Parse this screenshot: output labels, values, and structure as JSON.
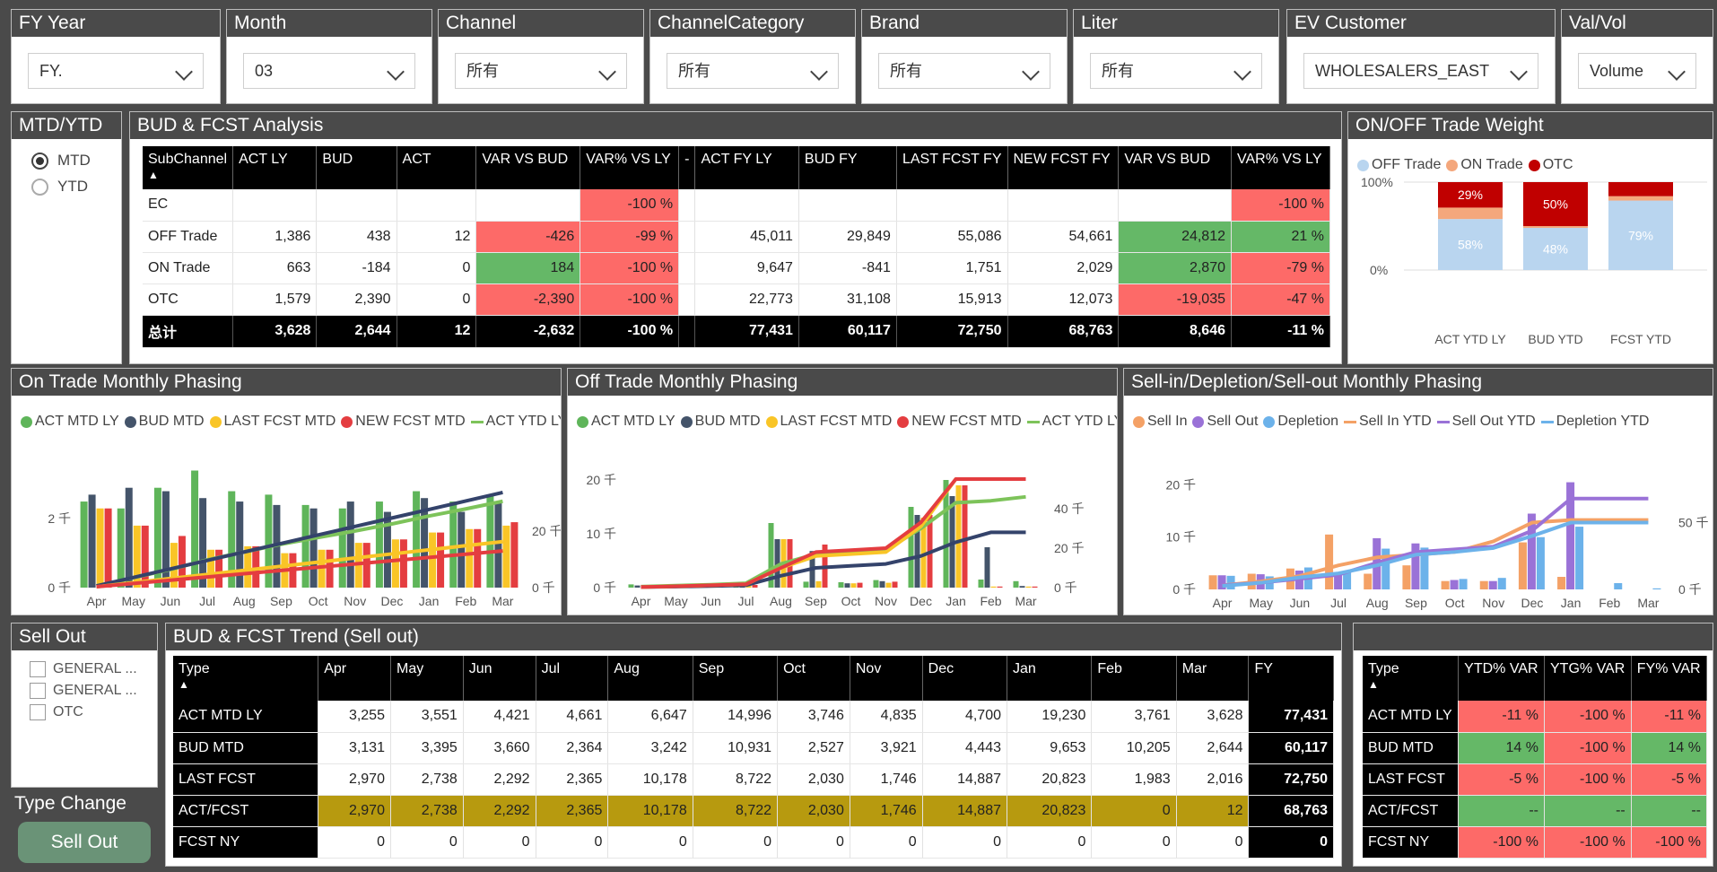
{
  "filters": [
    {
      "title": "FY Year",
      "value": "FY."
    },
    {
      "title": "Month",
      "value": "03"
    },
    {
      "title": "Channel",
      "value": "所有"
    },
    {
      "title": "ChannelCategory",
      "value": "所有"
    },
    {
      "title": "Brand",
      "value": "所有"
    },
    {
      "title": "Liter",
      "value": "所有"
    },
    {
      "title": "EV Customer",
      "value": "WHOLESALERS_EAST"
    },
    {
      "title": "Val/Vol",
      "value": "Volume"
    }
  ],
  "mtdytd": {
    "title": "MTD/YTD",
    "options": [
      "MTD",
      "YTD"
    ],
    "selected": "MTD"
  },
  "bud": {
    "title": "BUD & FCST Analysis",
    "headers": [
      "SubChannel",
      "ACT LY",
      "BUD",
      "ACT",
      "VAR VS BUD",
      "VAR% VS LY",
      "-",
      "ACT FY LY",
      "BUD FY",
      "LAST FCST FY",
      "NEW FCST FY",
      "VAR VS BUD",
      "VAR% VS LY"
    ],
    "rows": [
      [
        "EC",
        "",
        "",
        "",
        "",
        "-100 %",
        "",
        "",
        "",
        "",
        "",
        "",
        "-100 %"
      ],
      [
        "OFF Trade",
        "1,386",
        "438",
        "12",
        "-426",
        "-99 %",
        "",
        "45,011",
        "29,849",
        "55,086",
        "54,661",
        "24,812",
        "21 %"
      ],
      [
        "ON Trade",
        "663",
        "-184",
        "0",
        "184",
        "-100 %",
        "",
        "9,647",
        "-841",
        "1,751",
        "2,029",
        "2,870",
        "-79 %"
      ],
      [
        "OTC",
        "1,579",
        "2,390",
        "0",
        "-2,390",
        "-100 %",
        "",
        "22,773",
        "31,108",
        "15,913",
        "12,073",
        "-19,035",
        "-47 %"
      ]
    ],
    "total": [
      "总计",
      "3,628",
      "2,644",
      "12",
      "-2,632",
      "-100 %",
      "",
      "77,431",
      "60,117",
      "72,750",
      "68,763",
      "8,646",
      "-11 %"
    ]
  },
  "weight": {
    "title": "ON/OFF Trade Weight",
    "legend": [
      "OFF Trade",
      "ON Trade",
      "OTC"
    ],
    "y_ticks": [
      "100%",
      "0%"
    ],
    "categories": [
      "ACT YTD LY",
      "BUD YTD",
      "FCST YTD"
    ],
    "labels": [
      [
        "58%",
        "",
        "29%"
      ],
      [
        "48%",
        "",
        "50%"
      ],
      [
        "79%",
        "",
        ""
      ]
    ]
  },
  "chart_data": [
    {
      "type": "bar",
      "title": "On Trade Monthly Phasing",
      "categories": [
        "Apr",
        "May",
        "Jun",
        "Jul",
        "Aug",
        "Sep",
        "Oct",
        "Nov",
        "Dec",
        "Jan",
        "Feb",
        "Mar"
      ],
      "y_ticks_left": [
        "0 千",
        "2 千"
      ],
      "y_ticks_right": [
        "0 千",
        "20 千"
      ],
      "series": [
        {
          "name": "ACT MTD LY",
          "values": [
            2.5,
            2.3,
            2.9,
            3.4,
            2.8,
            2.7,
            2.4,
            2.3,
            2.5,
            2.8,
            2.5,
            2.7
          ]
        },
        {
          "name": "BUD MTD",
          "values": [
            2.7,
            2.9,
            2.8,
            2.6,
            2.5,
            2.4,
            2.3,
            2.5,
            2.2,
            2.6,
            2.2,
            2.5
          ]
        },
        {
          "name": "LAST FCST MTD",
          "values": [
            2.3,
            1.8,
            1.3,
            1.1,
            1.2,
            1.0,
            1.1,
            1.3,
            1.4,
            1.6,
            1.7,
            1.8
          ]
        },
        {
          "name": "NEW FCST MTD",
          "values": [
            2.3,
            1.8,
            1.5,
            1.1,
            1.2,
            1.0,
            1.1,
            1.3,
            1.4,
            1.6,
            1.7,
            1.9
          ]
        },
        {
          "name": "ACT YTD LY",
          "values": [
            0.5,
            3.5,
            6.4,
            9.8,
            12.6,
            15.3,
            17.7,
            20.0,
            22.5,
            25.3,
            27.8,
            30.5
          ]
        }
      ]
    },
    {
      "type": "bar",
      "title": "Off Trade Monthly Phasing",
      "categories": [
        "Apr",
        "May",
        "Jun",
        "Jul",
        "Aug",
        "Sep",
        "Oct",
        "Nov",
        "Dec",
        "Jan",
        "Feb",
        "Mar"
      ],
      "y_ticks_left": [
        "0 千",
        "10 千",
        "20 千"
      ],
      "y_ticks_right": [
        "0 千",
        "20 千",
        "40 千"
      ],
      "series": [
        {
          "name": "ACT MTD LY",
          "values": [
            0.6,
            0.3,
            0.5,
            0.6,
            12,
            1.1,
            1.0,
            1.4,
            15,
            20,
            1.5,
            1.2
          ]
        },
        {
          "name": "BUD MTD",
          "values": [
            0.4,
            0.2,
            0.3,
            0.4,
            9,
            6.8,
            0.8,
            1.2,
            13.5,
            17,
            7.5,
            0.3
          ]
        },
        {
          "name": "LAST FCST MTD",
          "values": [
            0.3,
            0.3,
            0.4,
            0.5,
            9,
            1.2,
            0.8,
            0.9,
            13,
            19,
            0.2,
            0.2
          ]
        },
        {
          "name": "NEW FCST MTD",
          "values": [
            0.3,
            0.3,
            0.4,
            0.5,
            9,
            8,
            0.9,
            1.1,
            13.5,
            19,
            0.2,
            0.2
          ]
        },
        {
          "name": "ACT YTD LY",
          "values": [
            0.6,
            1,
            1.6,
            2.3,
            14,
            16,
            17,
            18,
            33,
            45,
            46,
            47
          ]
        }
      ]
    },
    {
      "type": "bar",
      "title": "Sell-in/Depletion/Sell-out Monthly Phasing",
      "categories": [
        "Apr",
        "May",
        "Jun",
        "Jul",
        "Aug",
        "Sep",
        "Oct",
        "Nov",
        "Dec",
        "Jan",
        "Feb",
        "Mar"
      ],
      "y_ticks_left": [
        "0 千",
        "10 千",
        "20 千"
      ],
      "y_ticks_right": [
        "0 千",
        "50 千"
      ],
      "series": [
        {
          "name": "Sell In",
          "values": [
            2.7,
            3.0,
            4.0,
            10.5,
            3.0,
            4.6,
            1.6,
            1.6,
            9.0,
            2.4,
            0,
            0
          ]
        },
        {
          "name": "Sell Out",
          "values": [
            2.7,
            2.9,
            3.6,
            2.8,
            9.8,
            8.8,
            1.8,
            1.6,
            14.5,
            20.5,
            0,
            0
          ]
        },
        {
          "name": "Depletion",
          "values": [
            2.6,
            2.5,
            4.2,
            3.2,
            7.8,
            8.0,
            2.0,
            2.2,
            10.0,
            12.0,
            1.2,
            0.2
          ]
        },
        {
          "name": "Sell In YTD",
          "values": [
            2.7,
            5.7,
            9.7,
            20.2,
            23.2,
            27.8,
            29.4,
            31.0,
            40.0,
            42.4,
            42.4,
            42.4
          ]
        },
        {
          "name": "Sell Out YTD",
          "values": [
            2.7,
            5.6,
            9.2,
            12.0,
            21.8,
            30.6,
            32.4,
            34.0,
            48.5,
            69.0,
            69.0,
            69.0
          ]
        },
        {
          "name": "Depletion YTD",
          "values": [
            2.6,
            5.1,
            9.3,
            12.5,
            20.3,
            28.3,
            30.3,
            32.5,
            42.5,
            54.5,
            55.7,
            55.9
          ]
        }
      ]
    }
  ],
  "sellout": {
    "title": "Sell Out",
    "items": [
      "GENERAL ...",
      "GENERAL ...",
      "OTC"
    ]
  },
  "typechange": {
    "title": "Type Change",
    "button": "Sell Out"
  },
  "trend": {
    "title": "BUD & FCST Trend (Sell out)",
    "headers": [
      "Type",
      "Apr",
      "May",
      "Jun",
      "Jul",
      "Aug",
      "Sep",
      "Oct",
      "Nov",
      "Dec",
      "Jan",
      "Feb",
      "Mar",
      "FY"
    ],
    "rows": [
      [
        "ACT MTD LY",
        "3,255",
        "3,551",
        "4,421",
        "4,661",
        "6,647",
        "14,996",
        "3,746",
        "4,835",
        "4,700",
        "19,230",
        "3,761",
        "3,628",
        "77,431"
      ],
      [
        "BUD MTD",
        "3,131",
        "3,395",
        "3,660",
        "2,364",
        "3,242",
        "10,931",
        "2,527",
        "3,921",
        "4,443",
        "9,653",
        "10,205",
        "2,644",
        "60,117"
      ],
      [
        "LAST FCST",
        "2,970",
        "2,738",
        "2,292",
        "2,365",
        "10,178",
        "8,722",
        "2,030",
        "1,746",
        "14,887",
        "20,823",
        "1,983",
        "2,016",
        "72,750"
      ],
      [
        "ACT/FCST",
        "2,970",
        "2,738",
        "2,292",
        "2,365",
        "10,178",
        "8,722",
        "2,030",
        "1,746",
        "14,887",
        "20,823",
        "0",
        "12",
        "68,763"
      ],
      [
        "FCST NY",
        "0",
        "0",
        "0",
        "0",
        "0",
        "0",
        "0",
        "0",
        "0",
        "0",
        "0",
        "0",
        "0"
      ]
    ]
  },
  "var": {
    "headers": [
      "Type",
      "YTD% VAR",
      "YTG% VAR",
      "FY% VAR"
    ],
    "rows": [
      [
        "ACT MTD LY",
        "-11 %",
        "-100 %",
        "-11 %"
      ],
      [
        "BUD MTD",
        "14 %",
        "-100 %",
        "14 %"
      ],
      [
        "LAST FCST",
        "-5 %",
        "-100 %",
        "-5 %"
      ],
      [
        "ACT/FCST",
        "--",
        "--",
        "--"
      ],
      [
        "FCST NY",
        "-100 %",
        "-100 %",
        "-100 %"
      ]
    ]
  },
  "colors": {
    "grey_header": "#4a4a4a",
    "red": "#fd6a68",
    "green": "#65b867",
    "gold": "#b79a0f"
  }
}
